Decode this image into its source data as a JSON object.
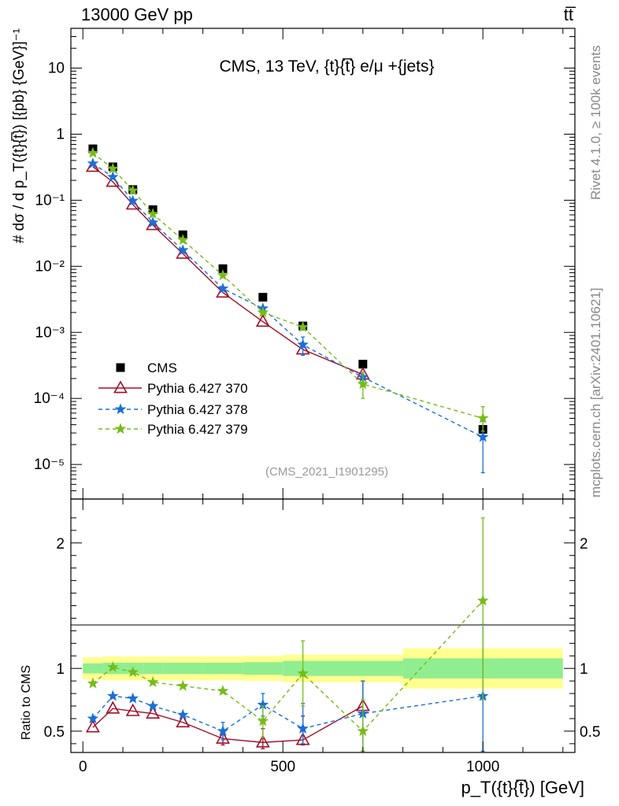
{
  "header": {
    "left": "13000 GeV pp",
    "right": "tt̅"
  },
  "side_labels": {
    "top": "Rivet 4.1.0, ≥ 100k events",
    "bottom": "mcplots.cern.ch [arXiv:2401.10621]"
  },
  "colors": {
    "cms": "#000000",
    "p370": "#a0102a",
    "p378": "#1a6fd6",
    "p379": "#77bb1a",
    "band_inner": "#90ee90",
    "band_outer": "#ffff90"
  },
  "chart_data": [
    {
      "type": "scatter",
      "title": "CMS, 13 TeV, {t}{t̅} e/μ +{jets}",
      "analysis_tag": "(CMS_2021_I1901295)",
      "ylabel_top": "# dσ / d p_T({t}{t̅}) [{pb} {GeV}]⁻¹",
      "y_scale": "log",
      "ylim": [
        3e-06,
        40
      ],
      "xlim": [
        -30,
        1230
      ],
      "y_ticks": [
        {
          "value": 10,
          "label": "10"
        },
        {
          "value": 1,
          "label": "1"
        },
        {
          "value": 0.1,
          "label": "10⁻¹"
        },
        {
          "value": 0.01,
          "label": "10⁻²"
        },
        {
          "value": 0.001,
          "label": "10⁻³"
        },
        {
          "value": 0.0001,
          "label": "10⁻⁴"
        },
        {
          "value": 1e-05,
          "label": "10⁻⁵"
        }
      ],
      "legend_position": "lower-left",
      "x": [
        25,
        75,
        125,
        175,
        250,
        350,
        450,
        550,
        700,
        1000
      ],
      "series": [
        {
          "name": "CMS",
          "style": "square",
          "values": [
            0.6,
            0.32,
            0.145,
            0.072,
            0.03,
            0.0092,
            0.0034,
            0.00125,
            0.00033,
            3.4e-05
          ]
        },
        {
          "name": "Pythia 6.427 370",
          "style": "triangle-solid",
          "values": [
            0.32,
            0.19,
            0.086,
            0.042,
            0.0155,
            0.004,
            0.00145,
            0.00055,
            0.00023,
            null
          ]
        },
        {
          "name": "Pythia 6.427 378",
          "style": "star-dashed",
          "values": [
            0.36,
            0.225,
            0.098,
            0.046,
            0.0175,
            0.0046,
            0.0023,
            0.00065,
            0.00021,
            2.6e-05
          ],
          "err_low": [
            null,
            null,
            null,
            null,
            null,
            null,
            null,
            0.00045,
            null,
            7.5e-06
          ],
          "err_high": [
            null,
            null,
            null,
            null,
            null,
            null,
            null,
            0.00085,
            null,
            4.5e-05
          ]
        },
        {
          "name": "Pythia 6.427 379",
          "style": "star-dashed",
          "values": [
            0.52,
            0.3,
            0.14,
            0.062,
            0.025,
            0.0073,
            0.002,
            0.0012,
            0.000165,
            5e-05
          ],
          "err_low": [
            null,
            null,
            null,
            null,
            null,
            null,
            null,
            null,
            0.0001,
            3.2e-05
          ],
          "err_high": [
            null,
            null,
            null,
            null,
            null,
            null,
            null,
            null,
            0.00025,
            7.5e-05
          ]
        }
      ]
    },
    {
      "type": "scatter",
      "ylabel": "Ratio to CMS",
      "xlabel": "p_T({t}{t̅}) [GeV]",
      "xlim": [
        -30,
        1230
      ],
      "ylim": [
        0.33,
        2.35
      ],
      "x_ticks": [
        {
          "value": 0,
          "label": "0"
        },
        {
          "value": 500,
          "label": "500"
        },
        {
          "value": 1000,
          "label": "1000"
        }
      ],
      "y_ticks": [
        {
          "value": 0.5,
          "label": "0.5"
        },
        {
          "value": 1,
          "label": "1"
        },
        {
          "value": 2,
          "label": "2"
        }
      ],
      "band_bins": [
        0,
        50,
        100,
        150,
        200,
        300,
        400,
        500,
        600,
        800,
        1200
      ],
      "band_inner": [
        [
          0.96,
          1.04
        ],
        [
          0.955,
          1.045
        ],
        [
          0.955,
          1.045
        ],
        [
          0.955,
          1.045
        ],
        [
          0.955,
          1.045
        ],
        [
          0.955,
          1.045
        ],
        [
          0.95,
          1.05
        ],
        [
          0.94,
          1.06
        ],
        [
          0.94,
          1.06
        ],
        [
          0.92,
          1.08
        ]
      ],
      "band_outer": [
        [
          0.91,
          1.09
        ],
        [
          0.905,
          1.095
        ],
        [
          0.905,
          1.095
        ],
        [
          0.905,
          1.095
        ],
        [
          0.905,
          1.095
        ],
        [
          0.905,
          1.095
        ],
        [
          0.9,
          1.1
        ],
        [
          0.89,
          1.11
        ],
        [
          0.89,
          1.11
        ],
        [
          0.84,
          1.16
        ]
      ],
      "x": [
        25,
        75,
        125,
        175,
        250,
        350,
        450,
        550,
        700,
        1000
      ],
      "series": [
        {
          "name": "Pythia 6.427 370",
          "values": [
            0.53,
            0.68,
            0.66,
            0.64,
            0.57,
            0.44,
            0.41,
            0.43,
            0.7,
            null
          ],
          "err_low": [
            null,
            null,
            null,
            null,
            null,
            0.39,
            0.36,
            0.39,
            0.34,
            null
          ],
          "err_high": [
            null,
            null,
            null,
            null,
            null,
            0.5,
            0.52,
            0.62,
            0.9,
            null
          ]
        },
        {
          "name": "Pythia 6.427 378",
          "values": [
            0.6,
            0.78,
            0.76,
            0.7,
            0.63,
            0.5,
            0.71,
            0.52,
            0.64,
            0.78
          ],
          "err_low": [
            null,
            null,
            null,
            null,
            null,
            0.43,
            0.62,
            0.4,
            0.34,
            0.34
          ],
          "err_high": [
            null,
            null,
            null,
            null,
            null,
            0.57,
            0.8,
            0.72,
            0.9,
            1.35
          ]
        },
        {
          "name": "Pythia 6.427 379",
          "values": [
            0.88,
            1.01,
            0.97,
            0.89,
            0.86,
            0.82,
            0.58,
            0.96,
            0.5,
            1.54
          ],
          "err_low": [
            null,
            null,
            null,
            null,
            null,
            null,
            0.45,
            0.7,
            0.34,
            0.75
          ],
          "err_high": [
            null,
            null,
            null,
            null,
            null,
            null,
            0.7,
            1.22,
            0.75,
            2.2
          ]
        }
      ]
    }
  ]
}
